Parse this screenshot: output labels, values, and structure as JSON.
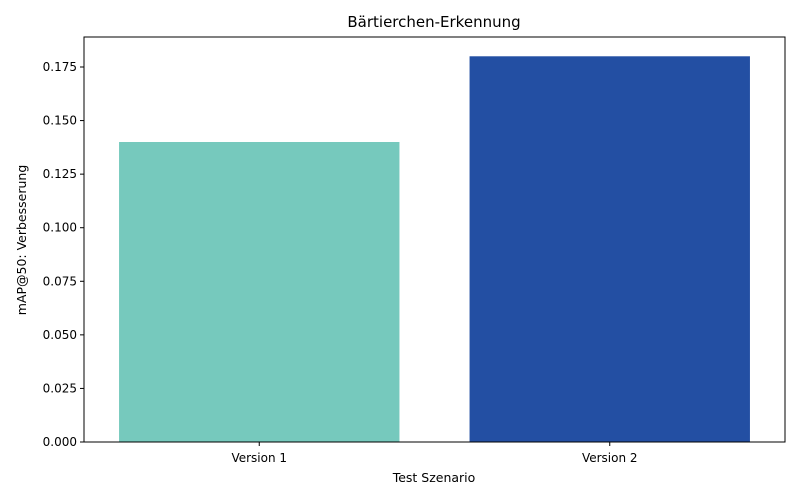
{
  "chart_data": {
    "type": "bar",
    "title": "Bärtierchen-Erkennung",
    "xlabel": "Test Szenario",
    "ylabel": "mAP@50: Verbesserung",
    "categories": [
      "Version 1",
      "Version 2"
    ],
    "values": [
      0.14,
      0.18
    ],
    "colors": [
      "#76c9bd",
      "#234fa3"
    ],
    "ylim": [
      0,
      0.189
    ],
    "yticks": [
      "0.000",
      "0.025",
      "0.050",
      "0.075",
      "0.100",
      "0.125",
      "0.150",
      "0.175"
    ],
    "grid": false,
    "baseline": 0
  }
}
